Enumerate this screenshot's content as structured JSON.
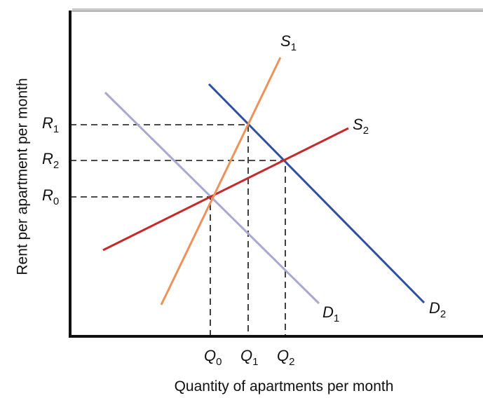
{
  "y_axis_label": "Rent per apartment per month",
  "x_axis_label": "Quantity of apartments per month",
  "curves": [
    {
      "main": "S",
      "sub": "1"
    },
    {
      "main": "S",
      "sub": "2"
    },
    {
      "main": "D",
      "sub": "1"
    },
    {
      "main": "D",
      "sub": "2"
    }
  ],
  "price_levels": [
    {
      "main": "R",
      "sub": "1"
    },
    {
      "main": "R",
      "sub": "2"
    },
    {
      "main": "R",
      "sub": "0"
    }
  ],
  "quantity_levels": [
    {
      "main": "Q",
      "sub": "0"
    },
    {
      "main": "Q",
      "sub": "1"
    },
    {
      "main": "Q",
      "sub": "2"
    }
  ]
}
